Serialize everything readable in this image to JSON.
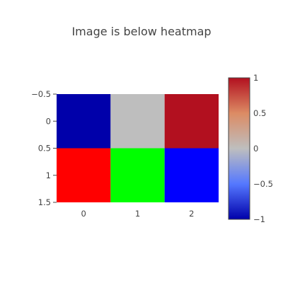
{
  "chart_data": {
    "type": "heatmap",
    "title": "Image is below heatmap",
    "x_ticks": [
      "0",
      "1",
      "2"
    ],
    "y_ticks": [
      "−0.5",
      "0",
      "0.5",
      "1",
      "1.5"
    ],
    "xlim": [
      -0.5,
      2.5
    ],
    "ylim": [
      1.5,
      -0.5
    ],
    "heatmap": {
      "x": [
        0,
        1,
        2
      ],
      "y": [
        0
      ],
      "z": [
        [
          -1,
          0,
          1
        ]
      ],
      "zmin": -1,
      "zmax": 1,
      "colorscale": "RdBu-like (blue to gray to red)"
    },
    "image": {
      "x": [
        0,
        1,
        2
      ],
      "y": [
        1
      ],
      "rgb": [
        [
          "#ff0000",
          "#00ff00",
          "#0000ff"
        ]
      ]
    },
    "colorbar": {
      "ticks": [
        "1",
        "0.5",
        "0",
        "−0.5",
        "−1"
      ],
      "tick_values": [
        1,
        0.5,
        0,
        -0.5,
        -1
      ]
    },
    "colors": {
      "heatmap_low": "#0000aa",
      "heatmap_mid": "#bebebe",
      "heatmap_high": "#b2101f"
    }
  }
}
